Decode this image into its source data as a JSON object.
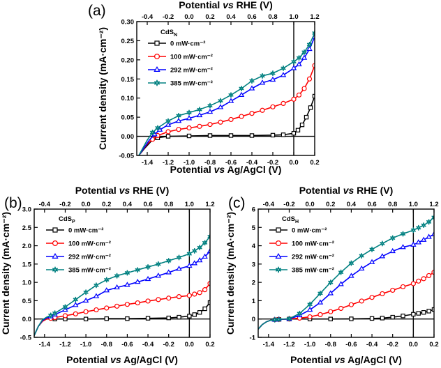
{
  "figure": {
    "series_names": [
      "0 mW·cm⁻²",
      "100 mW·cm⁻²",
      "292 mW·cm⁻²",
      "385 mW·cm⁻²"
    ],
    "series_colors": [
      "#000000",
      "#ff0000",
      "#0000ff",
      "#008080"
    ],
    "series_markers": [
      "square",
      "circle",
      "triangle",
      "star"
    ]
  },
  "chart_data": [
    {
      "panel": "(a)",
      "type": "line",
      "sample": "CdS",
      "sample_sub": "N",
      "xlabel_pre": "Potential ",
      "xlabel_ital": "vs",
      "xlabel_post": " Ag/AgCl (V)",
      "x2label_pre": "Potential ",
      "x2label_ital": "vs",
      "x2label_post": " RHE (V)",
      "ylabel": "Current density (mA·cm⁻²)",
      "xlim": [
        -1.5,
        0.2
      ],
      "ylim": [
        -0.05,
        0.3
      ],
      "xticks": [
        -1.4,
        -1.2,
        -1.0,
        -0.8,
        -0.6,
        -0.4,
        -0.2,
        0.0,
        0.2
      ],
      "xtick_labels": [
        "-1.4",
        "-1.2",
        "-1.0",
        "-0.8",
        "-0.6",
        "-0.4",
        "-0.2",
        "0.0",
        "0.2"
      ],
      "yticks": [
        -0.05,
        0.0,
        0.05,
        0.1,
        0.15,
        0.2,
        0.25,
        0.3
      ],
      "ytick_labels": [
        "-0.05",
        "0.00",
        "0.05",
        "0.10",
        "0.15",
        "0.20",
        "0.25",
        "0.30"
      ],
      "x2ticks": [
        -0.4,
        -0.2,
        0.0,
        0.2,
        0.4,
        0.6,
        0.8,
        1.0,
        1.2
      ],
      "x2tick_labels": [
        "-0.4",
        "-0.2",
        "0.0",
        "0.2",
        "0.4",
        "0.6",
        "0.8",
        "1.0",
        "1.2"
      ],
      "rhe_offset": 1.0,
      "vline_x": 0.0,
      "hline_y": 0.0,
      "series": [
        {
          "name": "0 mW·cm⁻²",
          "x": [
            -1.48,
            -1.42,
            -1.36,
            -1.3,
            -1.2,
            -1.0,
            -0.8,
            -0.6,
            -0.4,
            -0.2,
            -0.1,
            0.0,
            0.04,
            0.08,
            0.12,
            0.16,
            0.2
          ],
          "y": [
            -0.05,
            -0.03,
            -0.012,
            -0.004,
            0.0,
            0.001,
            0.002,
            0.002,
            0.002,
            0.003,
            0.004,
            0.008,
            0.016,
            0.03,
            0.05,
            0.075,
            0.105
          ]
        },
        {
          "name": "100 mW·cm⁻²",
          "x": [
            -1.48,
            -1.44,
            -1.4,
            -1.35,
            -1.3,
            -1.2,
            -1.1,
            -1.0,
            -0.9,
            -0.8,
            -0.7,
            -0.6,
            -0.5,
            -0.4,
            -0.3,
            -0.2,
            -0.1,
            0.0,
            0.05,
            0.1,
            0.15,
            0.2
          ],
          "y": [
            -0.05,
            -0.035,
            -0.02,
            -0.008,
            0.002,
            0.012,
            0.018,
            0.022,
            0.026,
            0.031,
            0.037,
            0.044,
            0.052,
            0.06,
            0.068,
            0.077,
            0.086,
            0.097,
            0.108,
            0.125,
            0.15,
            0.185
          ]
        },
        {
          "name": "292 mW·cm⁻²",
          "x": [
            -1.48,
            -1.43,
            -1.38,
            -1.33,
            -1.28,
            -1.2,
            -1.1,
            -1.0,
            -0.9,
            -0.8,
            -0.7,
            -0.6,
            -0.5,
            -0.4,
            -0.3,
            -0.2,
            -0.1,
            0.0,
            0.05,
            0.1,
            0.15,
            0.2
          ],
          "y": [
            -0.05,
            -0.03,
            -0.01,
            0.005,
            0.017,
            0.03,
            0.04,
            0.047,
            0.055,
            0.064,
            0.076,
            0.092,
            0.108,
            0.125,
            0.14,
            0.148,
            0.16,
            0.178,
            0.188,
            0.205,
            0.228,
            0.26
          ]
        },
        {
          "name": "385 mW·cm⁻²",
          "x": [
            -1.48,
            -1.44,
            -1.4,
            -1.35,
            -1.3,
            -1.2,
            -1.1,
            -1.0,
            -0.9,
            -0.8,
            -0.7,
            -0.6,
            -0.5,
            -0.4,
            -0.3,
            -0.2,
            -0.1,
            0.0,
            0.05,
            0.1,
            0.15,
            0.2
          ],
          "y": [
            -0.05,
            -0.03,
            -0.01,
            0.01,
            0.022,
            0.04,
            0.054,
            0.062,
            0.07,
            0.08,
            0.093,
            0.108,
            0.125,
            0.145,
            0.158,
            0.165,
            0.178,
            0.195,
            0.205,
            0.22,
            0.24,
            0.27
          ]
        }
      ]
    },
    {
      "panel": "(b)",
      "type": "line",
      "sample": "CdS",
      "sample_sub": "P",
      "xlabel_pre": "Potential ",
      "xlabel_ital": "vs",
      "xlabel_post": " Ag/AgCl (V)",
      "x2label_pre": "Potential ",
      "x2label_ital": "vs",
      "x2label_post": " RHE (V)",
      "ylabel": "Current density (mA·cm⁻²)",
      "xlim": [
        -1.5,
        0.2
      ],
      "ylim": [
        -0.5,
        3.0
      ],
      "xticks": [
        -1.4,
        -1.2,
        -1.0,
        -0.8,
        -0.6,
        -0.4,
        -0.2,
        0.0,
        0.2
      ],
      "xtick_labels": [
        "-1.4",
        "-1.2",
        "-1.0",
        "-0.8",
        "-0.6",
        "-0.4",
        "-0.2",
        "0.0",
        "0.2"
      ],
      "yticks": [
        -0.5,
        0.0,
        0.5,
        1.0,
        1.5,
        2.0,
        2.5,
        3.0
      ],
      "ytick_labels": [
        "-0.5",
        "0.0",
        "0.5",
        "1.0",
        "1.5",
        "2.0",
        "2.5",
        "3.0"
      ],
      "x2ticks": [
        -0.4,
        -0.2,
        0.0,
        0.2,
        0.4,
        0.6,
        0.8,
        1.0,
        1.2
      ],
      "x2tick_labels": [
        "-0.4",
        "-0.2",
        "0.0",
        "0.2",
        "0.4",
        "0.6",
        "0.8",
        "1.0",
        "1.2"
      ],
      "rhe_offset": 1.0,
      "vline_x": 0.0,
      "hline_y": 0.0,
      "series": [
        {
          "name": "0 mW·cm⁻²",
          "x": [
            -1.5,
            -1.46,
            -1.42,
            -1.38,
            -1.3,
            -1.2,
            -1.0,
            -0.8,
            -0.6,
            -0.4,
            -0.2,
            -0.1,
            0.0,
            0.05,
            0.1,
            0.15,
            0.2
          ],
          "y": [
            -0.45,
            -0.2,
            -0.06,
            0.0,
            0.0,
            0.0,
            0.0,
            0.01,
            0.01,
            0.02,
            0.03,
            0.05,
            0.08,
            0.12,
            0.18,
            0.28,
            0.45
          ]
        },
        {
          "name": "100 mW·cm⁻²",
          "x": [
            -1.5,
            -1.46,
            -1.42,
            -1.38,
            -1.34,
            -1.3,
            -1.2,
            -1.1,
            -1.0,
            -0.9,
            -0.8,
            -0.7,
            -0.6,
            -0.5,
            -0.4,
            -0.3,
            -0.2,
            -0.1,
            0.0,
            0.05,
            0.1,
            0.15,
            0.2
          ],
          "y": [
            -0.45,
            -0.2,
            -0.06,
            0.0,
            0.02,
            0.04,
            0.09,
            0.14,
            0.2,
            0.25,
            0.3,
            0.35,
            0.4,
            0.44,
            0.49,
            0.53,
            0.57,
            0.61,
            0.64,
            0.68,
            0.72,
            0.8,
            0.97
          ]
        },
        {
          "name": "292 mW·cm⁻²",
          "x": [
            -1.5,
            -1.46,
            -1.42,
            -1.38,
            -1.34,
            -1.3,
            -1.2,
            -1.1,
            -1.0,
            -0.9,
            -0.8,
            -0.7,
            -0.6,
            -0.5,
            -0.4,
            -0.3,
            -0.2,
            -0.1,
            0.0,
            0.05,
            0.1,
            0.15,
            0.2
          ],
          "y": [
            -0.45,
            -0.2,
            -0.04,
            0.03,
            0.07,
            0.12,
            0.25,
            0.38,
            0.5,
            0.62,
            0.78,
            0.86,
            0.93,
            1.01,
            1.09,
            1.18,
            1.27,
            1.37,
            1.45,
            1.52,
            1.6,
            1.7,
            1.85
          ]
        },
        {
          "name": "385 mW·cm⁻²",
          "x": [
            -1.5,
            -1.46,
            -1.42,
            -1.38,
            -1.34,
            -1.3,
            -1.2,
            -1.1,
            -1.0,
            -0.9,
            -0.8,
            -0.7,
            -0.6,
            -0.5,
            -0.4,
            -0.3,
            -0.2,
            -0.1,
            0.0,
            0.05,
            0.1,
            0.15,
            0.2
          ],
          "y": [
            -0.45,
            -0.2,
            -0.02,
            0.05,
            0.1,
            0.16,
            0.33,
            0.53,
            0.73,
            0.92,
            1.07,
            1.18,
            1.26,
            1.34,
            1.42,
            1.5,
            1.59,
            1.68,
            1.78,
            1.86,
            1.95,
            2.08,
            2.25
          ]
        }
      ]
    },
    {
      "panel": "(c)",
      "type": "line",
      "sample": "CdS",
      "sample_sub": "H",
      "xlabel_pre": "Potential ",
      "xlabel_ital": "vs",
      "xlabel_post": " Ag/AgCl (V)",
      "x2label_pre": "Potential ",
      "x2label_ital": "vs",
      "x2label_post": " RHE (V)",
      "ylabel": "Current density (mA·cm⁻²)",
      "xlim": [
        -1.5,
        0.2
      ],
      "ylim": [
        -1.0,
        6.0
      ],
      "xticks": [
        -1.4,
        -1.2,
        -1.0,
        -0.8,
        -0.6,
        -0.4,
        -0.2,
        0.0,
        0.2
      ],
      "xtick_labels": [
        "-1.4",
        "-1.2",
        "-1.0",
        "-0.8",
        "-0.6",
        "-0.4",
        "-0.2",
        "0.0",
        "0.2"
      ],
      "yticks": [
        -1,
        0,
        1,
        2,
        3,
        4,
        5,
        6
      ],
      "ytick_labels": [
        "-1",
        "0",
        "1",
        "2",
        "3",
        "4",
        "5",
        "6"
      ],
      "x2ticks": [
        -0.4,
        -0.2,
        0.0,
        0.2,
        0.4,
        0.6,
        0.8,
        1.0,
        1.2
      ],
      "x2tick_labels": [
        "-0.4",
        "-0.2",
        "0.0",
        "0.2",
        "0.4",
        "0.6",
        "0.8",
        "1.0",
        "1.2"
      ],
      "rhe_offset": 1.0,
      "vline_x": 0.0,
      "hline_y": 0.0,
      "series": [
        {
          "name": "0 mW·cm⁻²",
          "x": [
            -1.5,
            -1.46,
            -1.42,
            -1.38,
            -1.3,
            -1.2,
            -1.0,
            -0.8,
            -0.6,
            -0.4,
            -0.3,
            -0.2,
            -0.1,
            0.0,
            0.05,
            0.1,
            0.15,
            0.2
          ],
          "y": [
            -0.55,
            -0.3,
            -0.15,
            -0.07,
            -0.02,
            0.0,
            0.0,
            0.0,
            0.01,
            0.03,
            0.05,
            0.1,
            0.17,
            0.26,
            0.31,
            0.36,
            0.43,
            0.52
          ]
        },
        {
          "name": "100 mW·cm⁻²",
          "x": [
            -1.5,
            -1.46,
            -1.42,
            -1.38,
            -1.34,
            -1.3,
            -1.2,
            -1.1,
            -1.0,
            -0.9,
            -0.8,
            -0.7,
            -0.6,
            -0.5,
            -0.4,
            -0.3,
            -0.2,
            -0.1,
            0.0,
            0.05,
            0.1,
            0.15,
            0.2
          ],
          "y": [
            -0.55,
            -0.3,
            -0.15,
            -0.07,
            -0.04,
            -0.02,
            0.0,
            0.05,
            0.12,
            0.24,
            0.4,
            0.58,
            0.78,
            0.98,
            1.18,
            1.38,
            1.57,
            1.76,
            1.93,
            2.07,
            2.2,
            2.37,
            2.55
          ]
        },
        {
          "name": "292 mW·cm⁻²",
          "x": [
            -1.5,
            -1.46,
            -1.42,
            -1.38,
            -1.34,
            -1.3,
            -1.2,
            -1.1,
            -1.0,
            -0.9,
            -0.8,
            -0.7,
            -0.6,
            -0.5,
            -0.4,
            -0.3,
            -0.2,
            -0.1,
            0.0,
            0.05,
            0.1,
            0.15,
            0.2
          ],
          "y": [
            -0.55,
            -0.3,
            -0.15,
            -0.07,
            -0.04,
            -0.02,
            0.0,
            0.2,
            0.5,
            0.9,
            1.4,
            1.9,
            2.35,
            2.75,
            3.1,
            3.42,
            3.7,
            3.92,
            4.05,
            4.18,
            4.32,
            4.48,
            4.62
          ]
        },
        {
          "name": "385 mW·cm⁻²",
          "x": [
            -1.5,
            -1.46,
            -1.42,
            -1.38,
            -1.34,
            -1.3,
            -1.2,
            -1.1,
            -1.0,
            -0.9,
            -0.8,
            -0.7,
            -0.6,
            -0.5,
            -0.4,
            -0.3,
            -0.2,
            -0.1,
            0.0,
            0.05,
            0.1,
            0.15,
            0.2
          ],
          "y": [
            -0.55,
            -0.3,
            -0.15,
            -0.07,
            -0.04,
            -0.02,
            0.02,
            0.3,
            0.8,
            1.4,
            2.0,
            2.55,
            3.05,
            3.45,
            3.8,
            4.12,
            4.42,
            4.65,
            4.85,
            4.98,
            5.12,
            5.3,
            5.55
          ]
        }
      ]
    }
  ]
}
